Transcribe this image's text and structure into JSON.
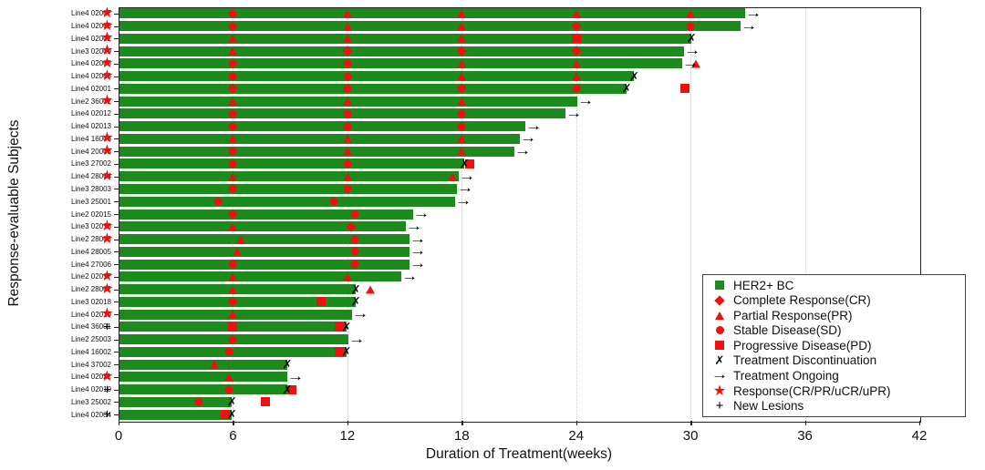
{
  "chart_data": {
    "type": "bar",
    "subtype": "horizontal-swimmer-plot",
    "title": "",
    "xlabel": "Duration of Treatment(weeks)",
    "ylabel": "Response-evaluable Subjects",
    "xlim": [
      0,
      42
    ],
    "xticks": [
      0,
      6,
      12,
      18,
      24,
      30,
      36,
      42
    ],
    "grid": "vertical-dotted",
    "pre_marker_week": -0.6,
    "colors": {
      "bar": "#1c8a1c",
      "response_marker": "#ed1111",
      "black_marker": "#000000",
      "text": "#111111"
    },
    "legend": {
      "position": "inside-right-bottom",
      "items": [
        {
          "marker": "bar",
          "label": "HER2+ BC"
        },
        {
          "marker": "CR",
          "label": "Complete Response(CR)"
        },
        {
          "marker": "PR",
          "label": "Partial Response(PR)"
        },
        {
          "marker": "SD",
          "label": "Stable Disease(SD)"
        },
        {
          "marker": "PD",
          "label": "Progressive Disease(PD)"
        },
        {
          "marker": "discontinued",
          "label": "Treatment Discontinuation"
        },
        {
          "marker": "ongoing",
          "label": "Treatment Ongoing"
        },
        {
          "marker": "response",
          "label": "Response(CR/PR/uCR/uPR)"
        },
        {
          "marker": "new-lesions",
          "label": "New Lesions"
        }
      ]
    },
    "subjects": [
      {
        "id": "Line4 02007",
        "pre": "response",
        "duration": 32.8,
        "end": "ongoing",
        "events": [
          {
            "week": 6,
            "type": "SD"
          },
          {
            "week": 12,
            "type": "PR"
          },
          {
            "week": 18,
            "type": "PR"
          },
          {
            "week": 24,
            "type": "PR"
          },
          {
            "week": 30,
            "type": "PR"
          }
        ]
      },
      {
        "id": "Line4 02005",
        "pre": "response",
        "duration": 32.6,
        "end": "ongoing",
        "events": [
          {
            "week": 6,
            "type": "SD"
          },
          {
            "week": 12,
            "type": "PR"
          },
          {
            "week": 18,
            "type": "PR"
          },
          {
            "week": 24,
            "type": "SD"
          },
          {
            "week": 30,
            "type": "SD"
          }
        ]
      },
      {
        "id": "Line4 02002",
        "pre": "response",
        "duration": 30.0,
        "end": "discontinued",
        "events": [
          {
            "week": 6,
            "type": "PR"
          },
          {
            "week": 12,
            "type": "PR"
          },
          {
            "week": 18,
            "type": "PR"
          },
          {
            "week": 24,
            "type": "PD"
          }
        ]
      },
      {
        "id": "Line3 02009",
        "pre": "response",
        "duration": 29.6,
        "end": "ongoing",
        "events": [
          {
            "week": 6,
            "type": "PR"
          },
          {
            "week": 12,
            "type": "CR"
          },
          {
            "week": 18,
            "type": "CR"
          },
          {
            "week": 24,
            "type": "CR"
          }
        ]
      },
      {
        "id": "Line4 02008",
        "pre": "response",
        "duration": 29.5,
        "end": "ongoing",
        "events": [
          {
            "week": 6,
            "type": "SD"
          },
          {
            "week": 12,
            "type": "SD"
          },
          {
            "week": 18,
            "type": "PR"
          },
          {
            "week": 24,
            "type": "PR"
          },
          {
            "week": 30.3,
            "type": "PR"
          }
        ]
      },
      {
        "id": "Line4 02003",
        "pre": "response",
        "duration": 27.0,
        "end": "discontinued",
        "events": [
          {
            "week": 6,
            "type": "SD"
          },
          {
            "week": 12,
            "type": "SD"
          },
          {
            "week": 18,
            "type": "PR"
          },
          {
            "week": 24,
            "type": "PR"
          }
        ]
      },
      {
        "id": "Line4 02001",
        "pre": null,
        "duration": 26.6,
        "end": "discontinued",
        "events": [
          {
            "week": 6,
            "type": "SD"
          },
          {
            "week": 12,
            "type": "SD"
          },
          {
            "week": 18,
            "type": "SD"
          },
          {
            "week": 24,
            "type": "SD"
          },
          {
            "week": 29.7,
            "type": "PD"
          }
        ]
      },
      {
        "id": "Line2 36002",
        "pre": "response",
        "duration": 24.0,
        "end": "ongoing",
        "events": [
          {
            "week": 6,
            "type": "PR"
          },
          {
            "week": 12,
            "type": "PR"
          },
          {
            "week": 18,
            "type": "PR"
          }
        ]
      },
      {
        "id": "Line4 02012",
        "pre": null,
        "duration": 23.4,
        "end": "ongoing",
        "events": [
          {
            "week": 6,
            "type": "SD"
          },
          {
            "week": 12,
            "type": "SD"
          },
          {
            "week": 18,
            "type": "SD"
          }
        ]
      },
      {
        "id": "Line4 02013",
        "pre": null,
        "duration": 21.3,
        "end": "ongoing",
        "events": [
          {
            "week": 6,
            "type": "SD"
          },
          {
            "week": 12,
            "type": "SD"
          },
          {
            "week": 18,
            "type": "SD"
          }
        ]
      },
      {
        "id": "Line4 16003",
        "pre": "response",
        "duration": 21.0,
        "end": "ongoing",
        "events": [
          {
            "week": 6,
            "type": "PR"
          },
          {
            "week": 12,
            "type": "PR"
          },
          {
            "week": 18,
            "type": "PR"
          }
        ]
      },
      {
        "id": "Line4 20003",
        "pre": "response",
        "duration": 20.7,
        "end": "ongoing",
        "events": [
          {
            "week": 6,
            "type": "SD"
          },
          {
            "week": 12,
            "type": "PR"
          },
          {
            "week": 18,
            "type": "PR"
          }
        ]
      },
      {
        "id": "Line3 27002",
        "pre": null,
        "duration": 18.1,
        "end": "discontinued",
        "events": [
          {
            "week": 6,
            "type": "SD"
          },
          {
            "week": 12,
            "type": "SD"
          },
          {
            "week": 18.4,
            "type": "PD"
          }
        ]
      },
      {
        "id": "Line4 28004",
        "pre": "response",
        "duration": 17.8,
        "end": "ongoing",
        "events": [
          {
            "week": 6,
            "type": "PR"
          },
          {
            "week": 12,
            "type": "PR"
          },
          {
            "week": 17.5,
            "type": "PR"
          }
        ]
      },
      {
        "id": "Line3 28003",
        "pre": null,
        "duration": 17.7,
        "end": "ongoing",
        "events": [
          {
            "week": 6,
            "type": "SD"
          },
          {
            "week": 12,
            "type": "SD"
          }
        ]
      },
      {
        "id": "Line3 25001",
        "pre": null,
        "duration": 17.6,
        "end": "ongoing",
        "events": [
          {
            "week": 5.2,
            "type": "SD"
          },
          {
            "week": 11.3,
            "type": "SD"
          }
        ]
      },
      {
        "id": "Line2 02015",
        "pre": null,
        "duration": 15.4,
        "end": "ongoing",
        "events": [
          {
            "week": 6,
            "type": "SD"
          },
          {
            "week": 12.4,
            "type": "SD"
          }
        ]
      },
      {
        "id": "Line3 02016",
        "pre": "response",
        "duration": 15.0,
        "end": "ongoing",
        "events": [
          {
            "week": 6,
            "type": "PR"
          },
          {
            "week": 12.2,
            "type": "CR"
          }
        ]
      },
      {
        "id": "Line2 28006",
        "pre": "response",
        "duration": 15.2,
        "end": "ongoing",
        "events": [
          {
            "week": 6.4,
            "type": "PR"
          },
          {
            "week": 12.4,
            "type": "SD"
          }
        ]
      },
      {
        "id": "Line4 28005",
        "pre": null,
        "duration": 15.2,
        "end": "ongoing",
        "events": [
          {
            "week": 6.2,
            "type": "PR"
          },
          {
            "week": 12.4,
            "type": "SD"
          }
        ]
      },
      {
        "id": "Line4 27006",
        "pre": null,
        "duration": 15.2,
        "end": "ongoing",
        "events": [
          {
            "week": 6,
            "type": "SD"
          },
          {
            "week": 12.4,
            "type": "SD"
          }
        ]
      },
      {
        "id": "Line2 02017",
        "pre": "response",
        "duration": 14.8,
        "end": "ongoing",
        "events": [
          {
            "week": 6,
            "type": "PR"
          },
          {
            "week": 12,
            "type": "PR"
          }
        ]
      },
      {
        "id": "Line2 28002",
        "pre": "response",
        "duration": 12.4,
        "end": "discontinued",
        "events": [
          {
            "week": 6,
            "type": "PR"
          },
          {
            "week": 13.2,
            "type": "PR"
          }
        ]
      },
      {
        "id": "Line3 02018",
        "pre": null,
        "duration": 12.4,
        "end": "discontinued",
        "events": [
          {
            "week": 6,
            "type": "SD"
          },
          {
            "week": 10.6,
            "type": "PD"
          }
        ]
      },
      {
        "id": "Line4 02019",
        "pre": "response",
        "duration": 12.2,
        "end": "ongoing",
        "events": [
          {
            "week": 6,
            "type": "PR"
          }
        ]
      },
      {
        "id": "Line4 36001",
        "pre": "new-lesions",
        "duration": 11.9,
        "end": "discontinued",
        "events": [
          {
            "week": 6,
            "type": "PD"
          },
          {
            "week": 11.6,
            "type": "PD"
          }
        ]
      },
      {
        "id": "Line2 25003",
        "pre": null,
        "duration": 12.0,
        "end": "ongoing",
        "events": [
          {
            "week": 6,
            "type": "SD"
          }
        ]
      },
      {
        "id": "Line4 16002",
        "pre": null,
        "duration": 11.9,
        "end": "discontinued",
        "events": [
          {
            "week": 5.8,
            "type": "SD"
          },
          {
            "week": 11.6,
            "type": "PD"
          }
        ]
      },
      {
        "id": "Line4 37002",
        "pre": null,
        "duration": 8.8,
        "end": "discontinued",
        "events": [
          {
            "week": 5.0,
            "type": "PR"
          }
        ]
      },
      {
        "id": "Line4 02021",
        "pre": "response",
        "duration": 8.8,
        "end": "ongoing",
        "events": [
          {
            "week": 5.8,
            "type": "PR"
          }
        ]
      },
      {
        "id": "Line4 02010",
        "pre": "new-lesions",
        "duration": 8.8,
        "end": "discontinued",
        "events": [
          {
            "week": 5.8,
            "type": "SD"
          },
          {
            "week": 9.1,
            "type": "PD"
          }
        ]
      },
      {
        "id": "Line3 25002",
        "pre": null,
        "duration": 5.9,
        "end": "discontinued",
        "events": [
          {
            "week": 4.2,
            "type": "SD"
          },
          {
            "week": 7.7,
            "type": "PD"
          }
        ]
      },
      {
        "id": "Line4 02004",
        "pre": "new-lesions",
        "duration": 5.9,
        "end": "discontinued",
        "events": [
          {
            "week": 5.6,
            "type": "PD"
          }
        ]
      }
    ]
  }
}
